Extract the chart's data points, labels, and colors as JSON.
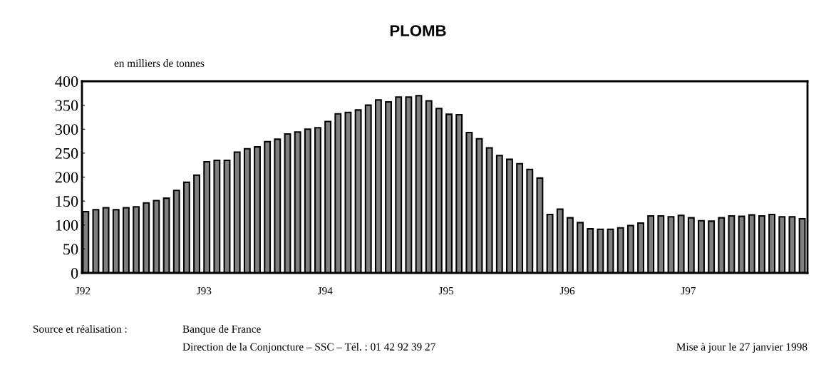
{
  "chart_data": {
    "type": "bar",
    "title": "PLOMB",
    "ylabel": "en milliers de tonnes",
    "categories": [
      "J92",
      null,
      null,
      null,
      null,
      null,
      null,
      null,
      null,
      null,
      null,
      null,
      "J93",
      null,
      null,
      null,
      null,
      null,
      null,
      null,
      null,
      null,
      null,
      null,
      "J94",
      null,
      null,
      null,
      null,
      null,
      null,
      null,
      null,
      null,
      null,
      null,
      "J95",
      null,
      null,
      null,
      null,
      null,
      null,
      null,
      null,
      null,
      null,
      null,
      "J96",
      null,
      null,
      null,
      null,
      null,
      null,
      null,
      null,
      null,
      null,
      null,
      "J97",
      null,
      null,
      null,
      null,
      null,
      null,
      null,
      null,
      null,
      null,
      null
    ],
    "values": [
      128,
      132,
      136,
      132,
      136,
      138,
      146,
      151,
      156,
      172,
      189,
      204,
      232,
      235,
      235,
      252,
      259,
      263,
      274,
      279,
      290,
      294,
      300,
      303,
      316,
      332,
      335,
      340,
      350,
      361,
      357,
      367,
      367,
      370,
      359,
      343,
      331,
      330,
      293,
      280,
      261,
      245,
      237,
      228,
      216,
      198,
      122,
      133,
      115,
      105,
      92,
      91,
      91,
      94,
      99,
      104,
      119,
      119,
      117,
      120,
      115,
      109,
      108,
      115,
      119,
      118,
      121,
      119,
      122,
      117,
      117,
      113
    ],
    "color": "#808080",
    "ylim": [
      0,
      400
    ],
    "yticks": [
      0,
      50,
      100,
      150,
      200,
      250,
      300,
      350,
      400
    ],
    "grid": false,
    "legend": false,
    "annotations": [
      "Source et réalisation :",
      "Banque de France",
      "Direction de la Conjoncture – SSC – Tél. : 01 42 92 39 27",
      "Mise à jour le 27 janvier 1998"
    ]
  }
}
